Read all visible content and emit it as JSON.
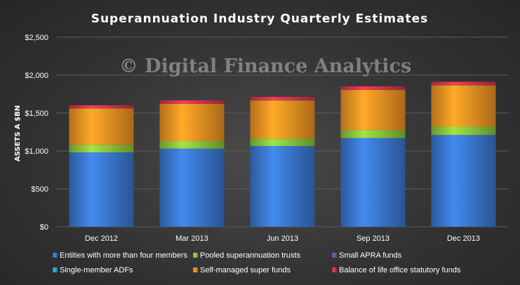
{
  "watermark": "© Digital Finance Analytics",
  "chart_data": {
    "type": "bar",
    "stacked": true,
    "title": "Superannuation  Industry  Quarterly  Estimates",
    "xlabel": "",
    "ylabel": "ASSETS A $BN",
    "ylim": [
      0,
      2500
    ],
    "yticks": [
      0,
      500,
      1000,
      1500,
      2000,
      2500
    ],
    "ytick_labels": [
      "$0",
      "$500",
      "$1,000",
      "$1,500",
      "$2,000",
      "$2,500"
    ],
    "categories": [
      "Dec 2012",
      "Mar 2013",
      "Jun 2013",
      "Sep 2013",
      "Dec 2013"
    ],
    "grid": true,
    "legend_position": "bottom",
    "series": [
      {
        "name": "Entities with more than four members",
        "color": "#3a78d0",
        "values": [
          980,
          1030,
          1065,
          1170,
          1210
        ]
      },
      {
        "name": "Single-member ADFs",
        "color": "#2aa7c9",
        "values": [
          0,
          0,
          0,
          0,
          0
        ]
      },
      {
        "name": "Pooled superannuation trusts",
        "color": "#8cc63e",
        "values": [
          100,
          100,
          100,
          105,
          110
        ]
      },
      {
        "name": "Self-managed super funds",
        "color": "#f39422",
        "values": [
          480,
          490,
          500,
          530,
          545
        ]
      },
      {
        "name": "Small APRA funds",
        "color": "#7b54a3",
        "values": [
          2,
          2,
          2,
          2,
          2
        ]
      },
      {
        "name": "Balance of life office statutory funds",
        "color": "#d9334a",
        "values": [
          40,
          45,
          45,
          45,
          45
        ]
      }
    ]
  }
}
